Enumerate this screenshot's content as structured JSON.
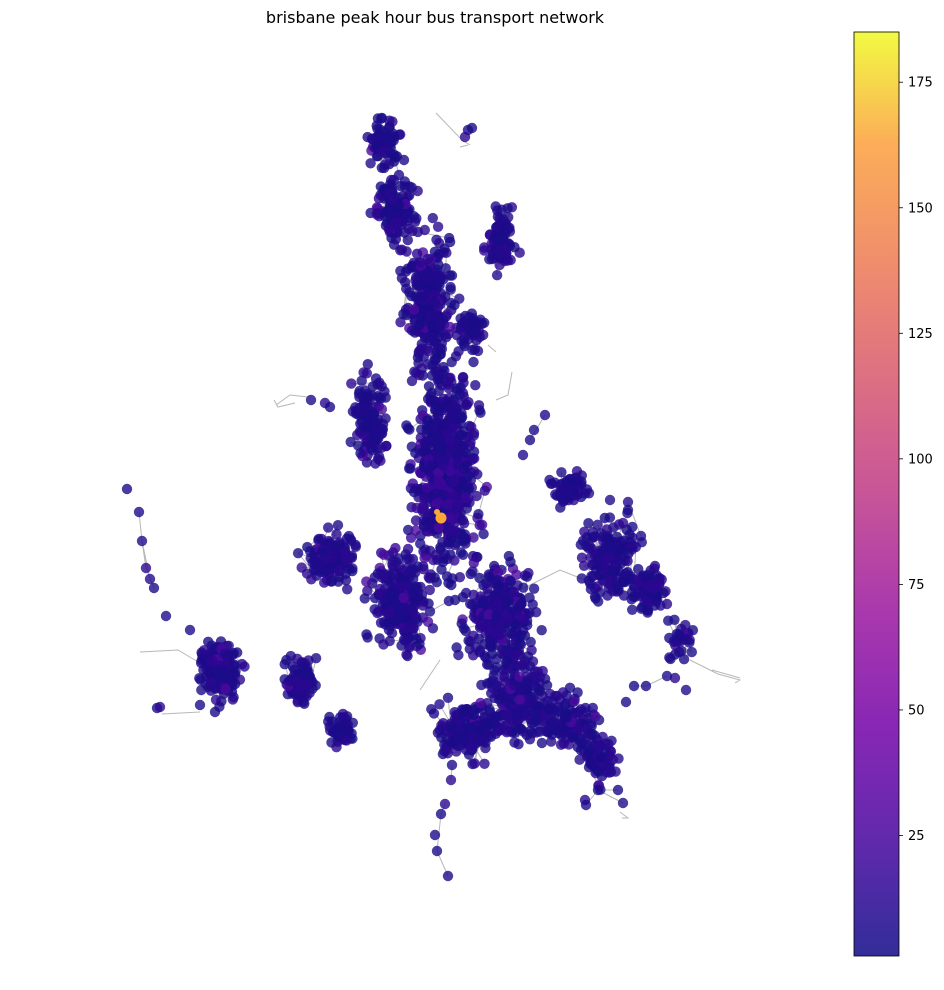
{
  "chart_data": {
    "type": "network",
    "title": "brisbane peak hour bus transport network",
    "node_color_metric": {
      "colormap": "plasma",
      "min": 1,
      "max": 185,
      "ticks": [
        25,
        50,
        75,
        100,
        125,
        150,
        175
      ]
    },
    "edge_color": "#999999",
    "node_alpha": 0.8,
    "hub_node": {
      "value": 150,
      "color": "#fca636"
    },
    "axes_visible": false
  }
}
